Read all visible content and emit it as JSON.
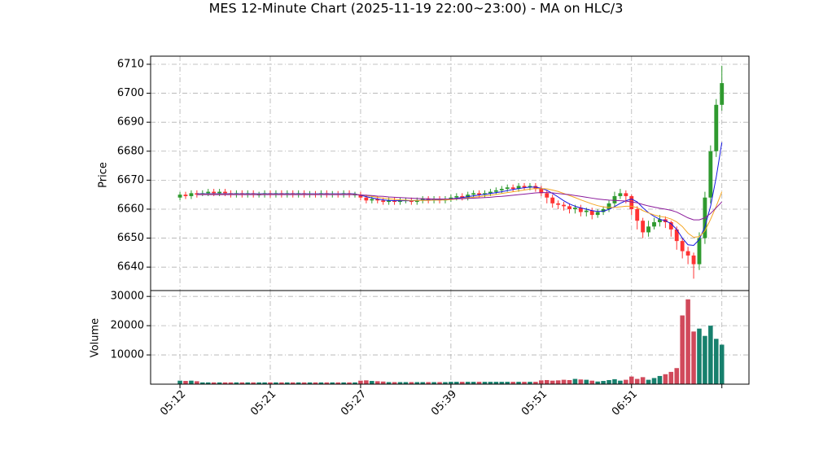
{
  "chart_data": {
    "type": "candlestick",
    "title": "MES 12-Minute Chart (2025-11-19 22:00~23:00) - MA on HLC/3",
    "ylabel": "Price",
    "volume_label": "Volume",
    "grid": true,
    "up_color": "#2f9a2f",
    "down_color": "#ff3333",
    "volume_up_color": "#17806d",
    "volume_down_color": "#d1495b",
    "xlim": [
      -5.2,
      100.8
    ],
    "xticks": [
      0,
      16,
      32,
      48,
      64,
      80,
      96
    ],
    "ylim": [
      6631.9,
      6712.8
    ],
    "yticks": [
      6640,
      6650,
      6660,
      6670,
      6680,
      6690,
      6700,
      6710
    ],
    "volume_ylim": [
      0,
      32000
    ],
    "volume_yticks": [
      10000,
      20000,
      30000
    ],
    "categories": [
      "05:12",
      null,
      null,
      null,
      null,
      null,
      null,
      null,
      null,
      null,
      null,
      null,
      null,
      null,
      null,
      null,
      "05:21",
      null,
      null,
      null,
      null,
      null,
      null,
      null,
      null,
      null,
      null,
      null,
      null,
      null,
      null,
      null,
      "05:27",
      null,
      null,
      null,
      null,
      null,
      null,
      null,
      null,
      null,
      null,
      null,
      null,
      null,
      null,
      null,
      "05:39",
      null,
      null,
      null,
      null,
      null,
      null,
      null,
      null,
      null,
      null,
      null,
      null,
      null,
      null,
      null,
      "05:51",
      null,
      null,
      null,
      null,
      null,
      null,
      null,
      null,
      null,
      null,
      null,
      null,
      null,
      null,
      null,
      "06:51",
      null,
      null,
      null,
      null,
      null,
      null,
      null,
      null,
      null,
      null,
      null,
      null,
      null,
      null,
      null,
      null
    ],
    "open": [
      6664,
      6665,
      6664.5,
      6665.5,
      6665,
      6665.5,
      6666,
      6665.5,
      6666,
      6665.5,
      6665,
      6665.5,
      6665,
      6665.5,
      6665,
      6665,
      6665.5,
      6665,
      6665.5,
      6665,
      6665.5,
      6665,
      6665.5,
      6665,
      6665.25,
      6665,
      6665.5,
      6665,
      6665.25,
      6665,
      6665.5,
      6665,
      6665,
      6664,
      6663,
      6663.5,
      6663,
      6662.5,
      6663,
      6662.5,
      6663,
      6663,
      6662.5,
      6663,
      6663.5,
      6663,
      6663.5,
      6663,
      6663.5,
      6664,
      6664.5,
      6664,
      6665,
      6665.5,
      6665,
      6665.5,
      6666,
      6666.5,
      6667,
      6667.5,
      6667,
      6668,
      6667.5,
      6668,
      6667,
      6665.5,
      6664,
      6662,
      6661.5,
      6661,
      6660,
      6660.5,
      6659,
      6659.5,
      6658,
      6659,
      6660,
      6662,
      6664.5,
      6665.5,
      6664.5,
      6660,
      6656,
      6652,
      6654,
      6655.5,
      6656.5,
      6655.5,
      6653,
      6649,
      6645.5,
      6644,
      6641,
      6650,
      6664,
      6680,
      6696
    ],
    "high": [
      6666,
      6666,
      6666.5,
      6666.5,
      6666.5,
      6667,
      6667,
      6667,
      6667,
      6666.5,
      6666.5,
      6666.5,
      6666.5,
      6666.5,
      6666,
      6666.5,
      6666.5,
      6666.5,
      6666.5,
      6666.5,
      6666.5,
      6666.5,
      6666.5,
      6666.25,
      6666.25,
      6666.5,
      6666.5,
      6666.25,
      6666.25,
      6666.5,
      6666.5,
      6666,
      6666,
      6665,
      6664.5,
      6664.5,
      6664,
      6664,
      6664,
      6664,
      6664,
      6664,
      6664,
      6664.5,
      6664.5,
      6664.5,
      6664.5,
      6664.5,
      6665,
      6665.5,
      6665.5,
      6666,
      6666.5,
      6666.5,
      6666.5,
      6667,
      6667.5,
      6668,
      6668.5,
      6668.5,
      6669,
      6669,
      6669,
      6669,
      6668,
      6666.5,
      6665,
      6663,
      6662.5,
      6662,
      6661.5,
      6661.5,
      6660.5,
      6660.5,
      6660,
      6661,
      6663,
      6666,
      6667,
      6666.5,
      6665,
      6661,
      6657,
      6656,
      6657,
      6658,
      6657.5,
      6656,
      6654,
      6650,
      6647,
      6645,
      6652,
      6666,
      6682,
      6698,
      6709.5
    ],
    "low": [
      6663,
      6663.5,
      6663.5,
      6664,
      6664.5,
      6664.5,
      6664.5,
      6664.5,
      6664.5,
      6664,
      6664,
      6664,
      6664,
      6664,
      6664,
      6664,
      6664,
      6664,
      6664,
      6664,
      6664,
      6664,
      6664,
      6664,
      6664,
      6664,
      6664,
      6664,
      6664,
      6664,
      6664,
      6664,
      6663,
      6662,
      6662,
      6662,
      6661.5,
      6661.5,
      6661.5,
      6661.5,
      6662,
      6661.5,
      6661.5,
      6662,
      6662,
      6662,
      6662,
      6662,
      6662.5,
      6663,
      6663,
      6663,
      6664,
      6664,
      6664,
      6664.5,
      6665,
      6665.5,
      6666,
      6666,
      6666,
      6666.5,
      6666.5,
      6666,
      6664.5,
      6662,
      6660.5,
      6660,
      6659.5,
      6658.5,
      6658.5,
      6657.5,
      6657.5,
      6656.5,
      6657,
      6658,
      6659,
      6661,
      6663.5,
      6662,
      6658,
      6653,
      6650,
      6650.5,
      6653,
      6654,
      6653.5,
      6650.5,
      6646,
      6643,
      6641,
      6636,
      6639,
      6648,
      6662,
      6678,
      6694
    ],
    "close": [
      6665,
      6664.5,
      6665.5,
      6665,
      6665.5,
      6666,
      6665.5,
      6666,
      6665.5,
      6665,
      6665.5,
      6665,
      6665.5,
      6665,
      6665,
      6665.5,
      6665,
      6665.5,
      6665,
      6665.5,
      6665,
      6665.5,
      6665,
      6665.25,
      6665,
      6665.5,
      6665,
      6665.25,
      6665,
      6665.5,
      6665,
      6665,
      6664,
      6663,
      6663.5,
      6663,
      6662.5,
      6663,
      6662.5,
      6663,
      6663,
      6662.5,
      6663,
      6663.5,
      6663,
      6663.5,
      6663,
      6663.5,
      6664,
      6664.5,
      6664,
      6665,
      6665.5,
      6665,
      6665.5,
      6666,
      6666.5,
      6667,
      6667.5,
      6667,
      6668,
      6667.5,
      6668,
      6667,
      6665.5,
      6664,
      6662,
      6661.5,
      6661,
      6660,
      6660.5,
      6659,
      6659.5,
      6658,
      6659,
      6660,
      6662,
      6664.5,
      6665.5,
      6664.5,
      6660,
      6656,
      6652,
      6654,
      6655.5,
      6656.5,
      6655.5,
      6653,
      6649,
      6645.5,
      6644,
      6641,
      6650,
      6664,
      6680,
      6696,
      6703.5
    ],
    "volume": [
      1200,
      1100,
      1200,
      1000,
      600,
      600,
      600,
      600,
      600,
      600,
      600,
      600,
      600,
      600,
      600,
      600,
      600,
      600,
      600,
      600,
      600,
      600,
      600,
      600,
      600,
      600,
      600,
      600,
      600,
      600,
      600,
      600,
      1200,
      1300,
      1100,
      1000,
      900,
      700,
      700,
      700,
      700,
      700,
      700,
      700,
      700,
      700,
      700,
      700,
      800,
      800,
      800,
      800,
      800,
      800,
      800,
      800,
      800,
      800,
      800,
      800,
      800,
      800,
      800,
      800,
      1300,
      1400,
      1200,
      1300,
      1500,
      1400,
      1800,
      1600,
      1500,
      1200,
      900,
      1100,
      1400,
      1700,
      1200,
      1500,
      2600,
      1800,
      2400,
      1500,
      2100,
      2800,
      3400,
      4200,
      5500,
      23500,
      29000,
      18000,
      19000,
      16500,
      20000,
      15500,
      13500
    ],
    "ma_lines": [
      {
        "color": "#1515e0",
        "values": [
          null,
          null,
          null,
          6665.3,
          6665.3,
          6665.3,
          6665.3,
          6665.3,
          6665.3,
          6665.3,
          6665.3,
          6665.3,
          6665.3,
          6665.3,
          6665.3,
          6665.3,
          6665.3,
          6665.3,
          6665.3,
          6665.3,
          6665.3,
          6665.3,
          6665.3,
          6665.3,
          6665.3,
          6665.3,
          6665.3,
          6665.3,
          6665.3,
          6665.3,
          6665.3,
          6665.3,
          6664.8,
          6664.3,
          6663.9,
          6663.5,
          6663.2,
          6663,
          6662.9,
          6662.9,
          6662.9,
          6662.9,
          6663,
          6663.1,
          6663.2,
          6663.2,
          6663.3,
          6663.3,
          6663.5,
          6663.8,
          6664,
          6664.3,
          6664.6,
          6664.9,
          6665.1,
          6665.4,
          6665.7,
          6666,
          6666.4,
          6666.8,
          6667.1,
          6667.4,
          6667.6,
          6667.6,
          6667.2,
          6666.5,
          6665.4,
          6664.2,
          6662.9,
          6661.8,
          6661,
          6660.4,
          6660,
          6659.5,
          6659.2,
          6659.3,
          6659.9,
          6660.9,
          6662,
          6662.9,
          6663.5,
          6662.5,
          6660.5,
          6658.8,
          6657.5,
          6656.5,
          6656,
          6655,
          6653,
          6650,
          6647.7,
          6647.5,
          6649.5,
          6654,
          6661,
          6671,
          6683
        ]
      },
      {
        "color": "#f5a623",
        "values": [
          null,
          null,
          null,
          6665.1,
          6665.1,
          6665.1,
          6665.1,
          6665.1,
          6665.1,
          6665.1,
          6665.1,
          6665.1,
          6665.1,
          6665.1,
          6665.1,
          6665.1,
          6665.1,
          6665.1,
          6665.1,
          6665.1,
          6665.1,
          6665.1,
          6665.1,
          6665.1,
          6665.1,
          6665.1,
          6665.1,
          6665.1,
          6665.1,
          6665.1,
          6665.1,
          6665.1,
          6664.9,
          6664.7,
          6664.4,
          6664.1,
          6663.8,
          6663.6,
          6663.4,
          6663.2,
          6663.1,
          6663,
          6663,
          6663,
          6663,
          6663.1,
          6663.1,
          6663.2,
          6663.3,
          6663.5,
          6663.7,
          6663.9,
          6664.1,
          6664.3,
          6664.6,
          6664.8,
          6665.1,
          6665.4,
          6665.7,
          6666,
          6666.3,
          6666.6,
          6666.9,
          6667.1,
          6667.1,
          6667,
          6666.6,
          6666.1,
          6665.4,
          6664.7,
          6664,
          6663.2,
          6662.5,
          6661.8,
          6661.2,
          6660.8,
          6660.6,
          6660.6,
          6660.8,
          6661,
          6661,
          6660.5,
          6659.5,
          6658.7,
          6658,
          6657.5,
          6657.2,
          6656.6,
          6655.6,
          6654,
          6651.7,
          6650.3,
          6650.5,
          6652.5,
          6656.5,
          6661,
          6666
        ]
      },
      {
        "color": "#8b1a9b",
        "values": [
          null,
          null,
          null,
          6665,
          6665,
          6665,
          6665,
          6665,
          6665,
          6665,
          6665,
          6665,
          6665,
          6665,
          6665,
          6665,
          6665,
          6665,
          6665,
          6665,
          6665,
          6665,
          6665,
          6665,
          6665,
          6665,
          6665,
          6665,
          6665,
          6665,
          6665,
          6665,
          6664.9,
          6664.8,
          6664.7,
          6664.5,
          6664.4,
          6664.2,
          6664.1,
          6664,
          6663.9,
          6663.8,
          6663.7,
          6663.6,
          6663.6,
          6663.5,
          6663.5,
          6663.5,
          6663.5,
          6663.6,
          6663.6,
          6663.7,
          6663.8,
          6663.9,
          6664,
          6664.1,
          6664.3,
          6664.4,
          6664.6,
          6664.8,
          6665,
          6665.2,
          6665.4,
          6665.6,
          6665.7,
          6665.7,
          6665.6,
          6665.4,
          6665.2,
          6665,
          6664.7,
          6664.4,
          6664.1,
          6663.8,
          6663.5,
          6663.3,
          6663.1,
          6663,
          6662.9,
          6662.8,
          6662.5,
          6662.2,
          6661.6,
          6661.1,
          6660.7,
          6660.3,
          6660,
          6659.6,
          6659,
          6658,
          6657,
          6656.3,
          6656.3,
          6657,
          6658.5,
          6660.5,
          6662.5
        ]
      }
    ]
  }
}
